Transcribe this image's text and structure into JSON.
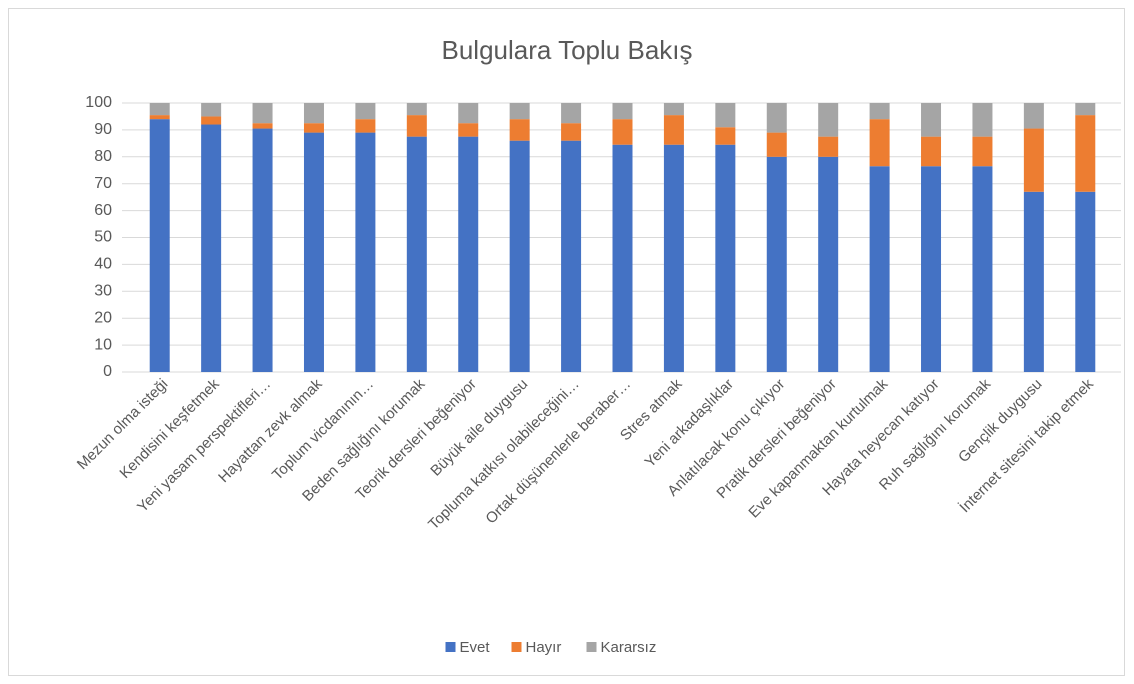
{
  "chart_data": {
    "type": "stacked_bar",
    "title": "Bulgulara Toplu Bakış",
    "categories": [
      "Mezun olma isteği",
      "Kendisini keşfetmek",
      "Yeni yasam perspektifleri…",
      "Hayattan zevk almak",
      "Toplum vicdanının…",
      "Beden sağlığını korumak",
      "Teorik dersleri beğeniyor",
      "Büyük aile duygusu",
      "Topluma katkısı olabileceğini…",
      "Ortak düşünenlerle beraber…",
      "Stres atmak",
      "Yeni arkadaşlıklar",
      "Anlatılacak konu çıkıyor",
      "Pratik dersleri beğeniyor",
      "Eve kapanmaktan kurtulmak",
      "Hayata heyecan katıyor",
      "Ruh sağlığını korumak",
      "Gençlik duygusu",
      "İnternet sitesini takip etmek"
    ],
    "series": [
      {
        "name": "Evet",
        "color": "#4472c4",
        "values": [
          94,
          92,
          90.5,
          89,
          89,
          87.5,
          87.5,
          86,
          86,
          84.5,
          84.5,
          84.5,
          80,
          80,
          76.5,
          76.5,
          76.5,
          67,
          67
        ]
      },
      {
        "name": "Hayır",
        "color": "#ed7d31",
        "values": [
          1.5,
          3,
          2,
          3.5,
          5,
          8,
          5,
          8,
          6.5,
          9.5,
          11,
          6.5,
          9,
          7.5,
          17.5,
          11,
          11,
          23.5,
          28.5
        ]
      },
      {
        "name": "Kararsız",
        "color": "#a5a5a5",
        "values": [
          4.5,
          5,
          7.5,
          7.5,
          6,
          4.5,
          7.5,
          6,
          7.5,
          6,
          4.5,
          9,
          11,
          12.5,
          6,
          12.5,
          12.5,
          9.5,
          4.5
        ]
      }
    ],
    "ylim": [
      0,
      100
    ],
    "yticks": [
      0,
      10,
      20,
      30,
      40,
      50,
      60,
      70,
      80,
      90,
      100
    ],
    "grid": true,
    "legend": "bottom"
  }
}
